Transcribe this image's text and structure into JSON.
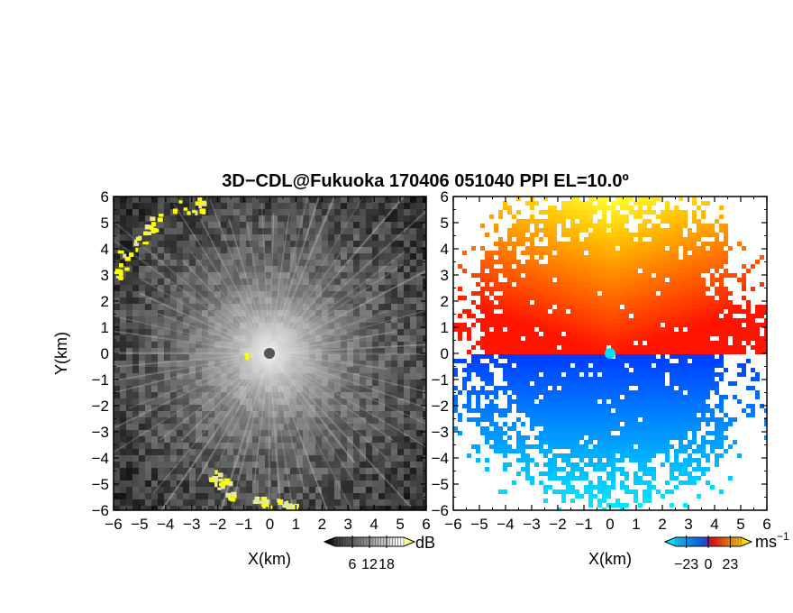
{
  "chart_data": {
    "title": "3D−CDL@Fukuoka 170406 051040 PPI EL=10.0º",
    "panels": [
      {
        "type": "heatmap",
        "quantity": "signal intensity",
        "colormap": "grayscale with yellow high values",
        "xlabel": "X(km)",
        "ylabel": "Y(km)",
        "xlim": [
          -6,
          6
        ],
        "ylim": [
          -6,
          6
        ],
        "xticks": [
          "−6",
          "−5",
          "−4",
          "−3",
          "−2",
          "−1",
          "0",
          "1",
          "2",
          "3",
          "4",
          "5",
          "6"
        ],
        "yticks": [
          "6",
          "5",
          "4",
          "3",
          "2",
          "1",
          "0",
          "−1",
          "−2",
          "−3",
          "−4",
          "−5",
          "−6"
        ],
        "colorbar": {
          "unit": "dB",
          "ticks": [
            "6",
            "12",
            "18"
          ],
          "range": [
            0,
            24
          ],
          "colors": [
            "#000000",
            "#ffffff",
            "#ffff00"
          ]
        }
      },
      {
        "type": "heatmap",
        "quantity": "doppler velocity",
        "colormap": "cyan-blue (negative) to red-orange-yellow (positive)",
        "xlabel": "X(km)",
        "xlim": [
          -6,
          6
        ],
        "ylim": [
          -6,
          6
        ],
        "xticks": [
          "−6",
          "−5",
          "−4",
          "−3",
          "−2",
          "−1",
          "0",
          "1",
          "2",
          "3",
          "4",
          "5",
          "6"
        ],
        "yticks": [
          "6",
          "5",
          "4",
          "3",
          "2",
          "1",
          "0",
          "−1",
          "−2",
          "−3",
          "−4",
          "−5",
          "−6"
        ],
        "colorbar": {
          "unit": "ms",
          "unit_exp": "−1",
          "ticks": [
            "−23",
            "0",
            "23"
          ],
          "range": [
            -34,
            34
          ],
          "colors": [
            "#00ffff",
            "#0050ff",
            "#ff0000",
            "#ff8800",
            "#ffff00"
          ]
        }
      }
    ],
    "grid": false
  }
}
